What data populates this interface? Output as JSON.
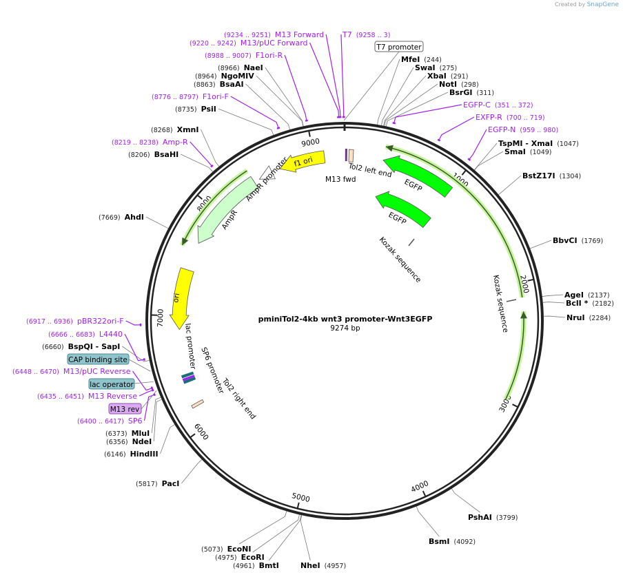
{
  "credit": {
    "prefix": "Created by",
    "brand": "SnapGene"
  },
  "plasmid": {
    "name": "pminiTol2-4kb wnt3 promoter-Wnt3EGFP",
    "size_label": "9274 bp",
    "length": 9274
  },
  "ticks": [
    "1000",
    "2000",
    "3000",
    "4000",
    "5000",
    "6000",
    "7000",
    "8000",
    "9000"
  ],
  "enzymes": [
    {
      "name": "MfeI",
      "pos": 244
    },
    {
      "name": "SwaI",
      "pos": 275
    },
    {
      "name": "XbaI",
      "pos": 291
    },
    {
      "name": "NotI",
      "pos": 298
    },
    {
      "name": "BsrGI",
      "pos": 311
    },
    {
      "name": "TspMI  - XmaI",
      "pos": 1047
    },
    {
      "name": "SmaI",
      "pos": 1049
    },
    {
      "name": "BstZ17I",
      "pos": 1304
    },
    {
      "name": "BbvCI",
      "pos": 1769
    },
    {
      "name": "AgeI",
      "pos": 2137
    },
    {
      "name": "BclI *",
      "pos": 2182
    },
    {
      "name": "NruI",
      "pos": 2284
    },
    {
      "name": "PshAI",
      "pos": 3799
    },
    {
      "name": "BsmI",
      "pos": 4092
    },
    {
      "name": "NheI",
      "pos": 4957
    },
    {
      "name": "NaeI",
      "pos": 8966
    },
    {
      "name": "NgoMIV",
      "pos": 8964
    },
    {
      "name": "BsaAI",
      "pos": 8863
    },
    {
      "name": "PsiI",
      "pos": 8735
    },
    {
      "name": "XmnI",
      "pos": 8268
    },
    {
      "name": "BsaHI",
      "pos": 8206
    },
    {
      "name": "AhdI",
      "pos": 7669
    },
    {
      "name": "BspQI  - SapI",
      "pos": 6660
    },
    {
      "name": "MluI",
      "pos": 6373
    },
    {
      "name": "NdeI",
      "pos": 6356
    },
    {
      "name": "HindIII",
      "pos": 6146
    },
    {
      "name": "PacI",
      "pos": 5817
    },
    {
      "name": "EcoNI",
      "pos": 5073
    },
    {
      "name": "EcoRI",
      "pos": 4975
    },
    {
      "name": "BmtI",
      "pos": 4961
    }
  ],
  "primers": [
    {
      "name": "M13 Forward",
      "range": "(9234 .. 9251)",
      "start": 9234,
      "end": 9251
    },
    {
      "name": "M13/pUC Forward",
      "range": "(9220 .. 9242)",
      "start": 9220,
      "end": 9242
    },
    {
      "name": "F1ori-R",
      "range": "(8988 .. 9007)",
      "start": 8988,
      "end": 9007
    },
    {
      "name": "F1ori-F",
      "range": "(8776 .. 8797)",
      "start": 8776,
      "end": 8797
    },
    {
      "name": "Amp-R",
      "range": "(8219 .. 8238)",
      "start": 8219,
      "end": 8238
    },
    {
      "name": "pBR322ori-F",
      "range": "(6917 .. 6936)",
      "start": 6917,
      "end": 6936
    },
    {
      "name": "L4440",
      "range": "(6666 .. 6683)",
      "start": 6666,
      "end": 6683
    },
    {
      "name": "M13/pUC Reverse",
      "range": "(6448 .. 6470)",
      "start": 6448,
      "end": 6470
    },
    {
      "name": "M13 Reverse",
      "range": "(6435 .. 6451)",
      "start": 6435,
      "end": 6451
    },
    {
      "name": "SP6",
      "range": "(6400 .. 6417)",
      "start": 6400,
      "end": 6417
    },
    {
      "name": "T7",
      "range": "(9258 .. 3)",
      "start": 9258,
      "end": 9277
    },
    {
      "name": "EGFP-C",
      "range": "(351 .. 372)",
      "start": 351,
      "end": 372
    },
    {
      "name": "EXFP-R",
      "range": "(700 .. 719)",
      "start": 700,
      "end": 719
    },
    {
      "name": "EGFP-N",
      "range": "(959 .. 980)",
      "start": 959,
      "end": 980
    }
  ],
  "boxed_features": {
    "t7_promoter": "T7 promoter",
    "cap_site": "CAP binding site",
    "lac_operator": "lac operator",
    "m13_rev": "M13 rev"
  },
  "features": {
    "tol2_left": "Tol2 left end",
    "m13_fwd": "M13 fwd",
    "egfp1": "EGFP",
    "egfp2": "EGFP",
    "kozak1": "Kozak sequence",
    "kozak2": "Kozak sequence",
    "f1_ori": "f1 ori",
    "ampr_promoter": "AmpR promoter",
    "ampr": "AmpR",
    "ori": "ori",
    "lac_promoter": "lac promoter",
    "sp6_promoter": "SP6 promoter",
    "tol2_right": "Tol2 right end"
  },
  "colors": {
    "primer": "#a020f0",
    "yellow": "#ffff00",
    "green": "#00ff00",
    "light_green": "#ccffcc",
    "beige": "#ffe0c0",
    "box": "#8fc4cc",
    "m13rev_box": "#d9aaf0"
  }
}
